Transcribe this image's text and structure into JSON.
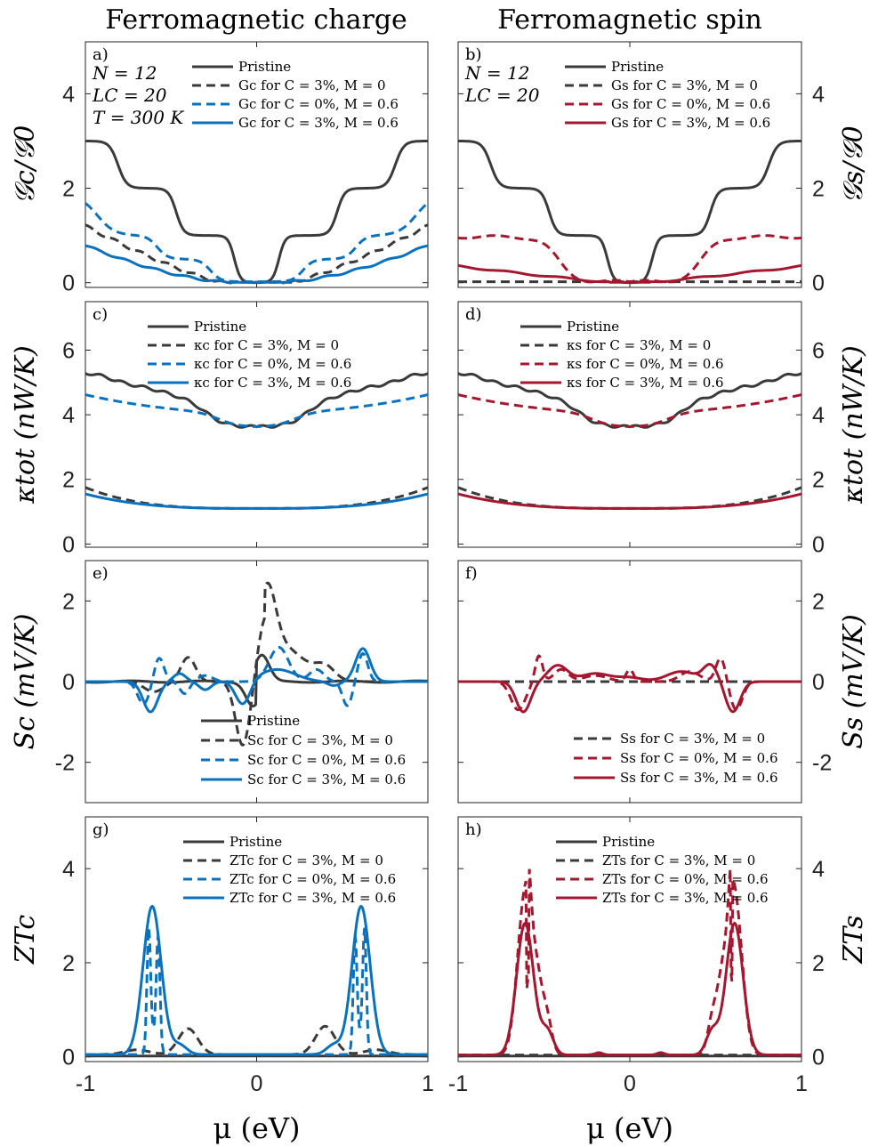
{
  "column_titles": [
    "Ferromagnetic charge",
    "Ferromagnetic spin"
  ],
  "x_axis": {
    "label": "μ (eV)",
    "ticks": [
      "-1",
      "0",
      "1"
    ],
    "range": [
      -1,
      1
    ]
  },
  "colors": {
    "pristine": "#3a3a3a",
    "dark": "#3a3a3a",
    "blue": "#0a72bd",
    "red": "#a3172f"
  },
  "chart_data": [
    {
      "id": "a",
      "panel_label": "a)",
      "type": "line",
      "ylabel": "𝒢c/𝒢0",
      "ylabel_side": "left",
      "ylim": [
        -0.1,
        5.1
      ],
      "yticks": [
        0,
        2,
        4
      ],
      "ytick_labels": [
        "0",
        "2",
        "4"
      ],
      "params": [
        "N = 12",
        "LC = 20",
        "T = 300 K"
      ],
      "series": [
        {
          "name": "Pristine",
          "color": "#3a3a3a",
          "dash": "solid",
          "kind": "g_pristine"
        },
        {
          "name": "Gc for C = 3%, M = 0",
          "color": "#3a3a3a",
          "dash": "dashed",
          "kind": "g_c3m0"
        },
        {
          "name": "Gc for C = 0%, M = 0.6",
          "color": "#0a72bd",
          "dash": "dashed",
          "kind": "g_c0m6"
        },
        {
          "name": "Gc for C = 3%, M = 0.6",
          "color": "#0a72bd",
          "dash": "solid",
          "kind": "g_c3m6"
        }
      ]
    },
    {
      "id": "b",
      "panel_label": "b)",
      "type": "line",
      "ylabel": "𝒢s/𝒢0",
      "ylabel_side": "right",
      "ylim": [
        -0.1,
        5.1
      ],
      "yticks": [
        0,
        2,
        4
      ],
      "ytick_labels": [
        "0",
        "2",
        "4"
      ],
      "params": [
        "N = 12",
        "LC = 20"
      ],
      "series": [
        {
          "name": "Pristine",
          "color": "#3a3a3a",
          "dash": "solid",
          "kind": "g_pristine"
        },
        {
          "name": "Gs for C = 3%, M = 0",
          "color": "#3a3a3a",
          "dash": "dashed",
          "kind": "gs_c3m0"
        },
        {
          "name": "Gs for C = 0%, M = 0.6",
          "color": "#a3172f",
          "dash": "dashed",
          "kind": "gs_c0m6"
        },
        {
          "name": "Gs for C = 3%, M = 0.6",
          "color": "#a3172f",
          "dash": "solid",
          "kind": "gs_c3m6"
        }
      ]
    },
    {
      "id": "c",
      "panel_label": "c)",
      "type": "line",
      "ylabel": "κtot (nW/K)",
      "ylabel_side": "left",
      "ylim": [
        -0.1,
        7.5
      ],
      "yticks": [
        0,
        2,
        4,
        6
      ],
      "ytick_labels": [
        "0",
        "2",
        "4",
        "6"
      ],
      "series": [
        {
          "name": "Pristine",
          "color": "#3a3a3a",
          "dash": "solid",
          "kind": "k_pristine"
        },
        {
          "name": "κc for C = 3%, M = 0",
          "color": "#3a3a3a",
          "dash": "dashed",
          "kind": "k_c3m0"
        },
        {
          "name": "κc for C = 0%, M = 0.6",
          "color": "#0a72bd",
          "dash": "dashed",
          "kind": "k_c0m6"
        },
        {
          "name": "κc for C = 3%, M = 0.6",
          "color": "#0a72bd",
          "dash": "solid",
          "kind": "k_c3m6"
        }
      ]
    },
    {
      "id": "d",
      "panel_label": "d)",
      "type": "line",
      "ylabel": "κtot (nW/K)",
      "ylabel_side": "right",
      "ylim": [
        -0.1,
        7.5
      ],
      "yticks": [
        0,
        2,
        4,
        6
      ],
      "ytick_labels": [
        "0",
        "2",
        "4",
        "6"
      ],
      "series": [
        {
          "name": "Pristine",
          "color": "#3a3a3a",
          "dash": "solid",
          "kind": "k_pristine"
        },
        {
          "name": "κs for C = 3%, M = 0",
          "color": "#3a3a3a",
          "dash": "dashed",
          "kind": "k_c3m0"
        },
        {
          "name": "κs for C = 0%, M = 0.6",
          "color": "#a3172f",
          "dash": "dashed",
          "kind": "k_c0m6"
        },
        {
          "name": "κs for C = 3%, M = 0.6",
          "color": "#a3172f",
          "dash": "solid",
          "kind": "k_c3m6"
        }
      ]
    },
    {
      "id": "e",
      "panel_label": "e)",
      "type": "line",
      "ylabel": "Sc (mV/K)",
      "ylabel_side": "left",
      "ylim": [
        -3,
        3
      ],
      "yticks": [
        -2,
        0,
        2
      ],
      "ytick_labels": [
        "-2",
        "0",
        "2"
      ],
      "series": [
        {
          "name": "Pristine",
          "color": "#3a3a3a",
          "dash": "solid",
          "kind": "s_pristine"
        },
        {
          "name": "Sc for C = 3%, M = 0",
          "color": "#3a3a3a",
          "dash": "dashed",
          "kind": "s_c3m0"
        },
        {
          "name": "Sc for C = 0%, M = 0.6",
          "color": "#0a72bd",
          "dash": "dashed",
          "kind": "s_c0m6"
        },
        {
          "name": "Sc for C = 3%, M = 0.6",
          "color": "#0a72bd",
          "dash": "solid",
          "kind": "s_c3m6"
        }
      ]
    },
    {
      "id": "f",
      "panel_label": "f)",
      "type": "line",
      "ylabel": "Ss (mV/K)",
      "ylabel_side": "right",
      "ylim": [
        -3,
        3
      ],
      "yticks": [
        -2,
        0,
        2
      ],
      "ytick_labels": [
        "-2",
        "0",
        "2"
      ],
      "series": [
        {
          "name": "Ss for C = 3%, M = 0",
          "color": "#3a3a3a",
          "dash": "dashed",
          "kind": "ss_c3m0"
        },
        {
          "name": "Ss for C = 0%, M = 0.6",
          "color": "#a3172f",
          "dash": "dashed",
          "kind": "ss_c0m6"
        },
        {
          "name": "Ss for C = 3%, M = 0.6",
          "color": "#a3172f",
          "dash": "solid",
          "kind": "ss_c3m6"
        }
      ]
    },
    {
      "id": "g",
      "panel_label": "g)",
      "type": "line",
      "ylabel": "ZTc",
      "ylabel_side": "left",
      "ylim": [
        -0.1,
        5.1
      ],
      "yticks": [
        0,
        2,
        4
      ],
      "ytick_labels": [
        "0",
        "2",
        "4"
      ],
      "series": [
        {
          "name": "Pristine",
          "color": "#3a3a3a",
          "dash": "solid",
          "kind": "zt_pristine"
        },
        {
          "name": "ZTc for C = 3%, M = 0",
          "color": "#3a3a3a",
          "dash": "dashed",
          "kind": "zt_c3m0"
        },
        {
          "name": "ZTc for C = 0%, M = 0.6",
          "color": "#0a72bd",
          "dash": "dashed",
          "kind": "zt_c0m6"
        },
        {
          "name": "ZTc for C = 3%, M = 0.6",
          "color": "#0a72bd",
          "dash": "solid",
          "kind": "zt_c3m6"
        }
      ]
    },
    {
      "id": "h",
      "panel_label": "h)",
      "type": "line",
      "ylabel": "ZTs",
      "ylabel_side": "right",
      "ylim": [
        -0.1,
        5.1
      ],
      "yticks": [
        0,
        2,
        4
      ],
      "ytick_labels": [
        "0",
        "2",
        "4"
      ],
      "series": [
        {
          "name": "Pristine",
          "color": "#3a3a3a",
          "dash": "solid",
          "kind": "zt_pristine"
        },
        {
          "name": "ZTs for C = 3%, M = 0",
          "color": "#3a3a3a",
          "dash": "dashed",
          "kind": "zts_c3m0"
        },
        {
          "name": "ZTs for C = 0%, M = 0.6",
          "color": "#a3172f",
          "dash": "dashed",
          "kind": "zts_c0m6"
        },
        {
          "name": "ZTs for C = 3%, M = 0.6",
          "color": "#a3172f",
          "dash": "solid",
          "kind": "zts_c3m6"
        }
      ]
    }
  ]
}
